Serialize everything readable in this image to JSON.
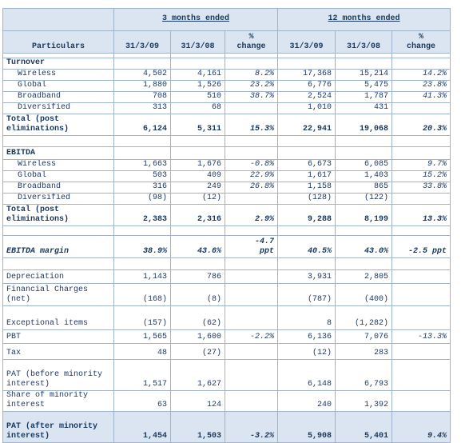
{
  "header": {
    "group_3m": "3 months ended",
    "group_12m": "12 months ended",
    "particulars": "Particulars",
    "columns": [
      "31/3/09",
      "31/3/08",
      "% change",
      "31/3/09",
      "31/3/08",
      "% change"
    ]
  },
  "table": {
    "rows": [
      {
        "label": "Turnover",
        "cells": [
          null,
          null,
          null,
          null,
          null,
          null
        ]
      },
      {
        "label": "Wireless",
        "cells": [
          "4,502",
          "4,161",
          "8.2%",
          "17,368",
          "15,214",
          "14.2%"
        ]
      },
      {
        "label": "Global",
        "cells": [
          "1,880",
          "1,526",
          "23.2%",
          "6,776",
          "5,475",
          "23.8%"
        ]
      },
      {
        "label": "Broadband",
        "cells": [
          "708",
          "510",
          "38.7%",
          "2,524",
          "1,787",
          "41.3%"
        ]
      },
      {
        "label": "Diversified",
        "cells": [
          "313",
          "68",
          null,
          "1,010",
          "431",
          null
        ]
      },
      {
        "label": "Total (post eliminations)",
        "cells": [
          "6,124",
          "5,311",
          "15.3%",
          "22,941",
          "19,068",
          "20.3%"
        ]
      },
      {
        "label": "EBITDA",
        "cells": [
          null,
          null,
          null,
          null,
          null,
          null
        ]
      },
      {
        "label": "Wireless",
        "cells": [
          "1,663",
          "1,676",
          "-0.8%",
          "6,673",
          "6,085",
          "9.7%"
        ]
      },
      {
        "label": "Global",
        "cells": [
          "503",
          "409",
          "22.9%",
          "1,617",
          "1,403",
          "15.2%"
        ]
      },
      {
        "label": "Broadband",
        "cells": [
          "316",
          "249",
          "26.8%",
          "1,158",
          "865",
          "33.8%"
        ]
      },
      {
        "label": "Diversified",
        "cells": [
          "(98)",
          "(12)",
          null,
          "(128)",
          "(122)",
          null
        ]
      },
      {
        "label": "Total (post eliminations)",
        "cells": [
          "2,383",
          "2,316",
          "2.9%",
          "9,288",
          "8,199",
          "13.3%"
        ]
      },
      {
        "label": "EBITDA margin",
        "cells": [
          "38.9%",
          "43.6%",
          "-4.7 ppt",
          "40.5%",
          "43.0%",
          "-2.5 ppt"
        ]
      },
      {
        "label": "Depreciation",
        "cells": [
          "1,143",
          "786",
          null,
          "3,931",
          "2,805",
          null
        ]
      },
      {
        "label": "Financial Charges (net)",
        "cells": [
          "(168)",
          "(8)",
          null,
          "(787)",
          "(400)",
          null
        ]
      },
      {
        "label": "Exceptional items",
        "cells": [
          "(157)",
          "(62)",
          null,
          "8",
          "(1,282)",
          null
        ]
      },
      {
        "label": "PBT",
        "cells": [
          "1,565",
          "1,600",
          "-2.2%",
          "6,136",
          "7,076",
          "-13.3%"
        ]
      },
      {
        "label": "Tax",
        "cells": [
          "48",
          "(27)",
          null,
          "(12)",
          "283",
          null
        ]
      },
      {
        "label": "PAT (before minority interest)",
        "cells": [
          "1,517",
          "1,627",
          null,
          "6,148",
          "6,793",
          null
        ]
      },
      {
        "label": "Share of minority interest",
        "cells": [
          "63",
          "124",
          null,
          "240",
          "1,392",
          null
        ]
      },
      {
        "label": "PAT (after minority interest)",
        "cells": [
          "1,454",
          "1,503",
          "-3.2%",
          "5,908",
          "5,401",
          "9.4%"
        ]
      }
    ]
  }
}
